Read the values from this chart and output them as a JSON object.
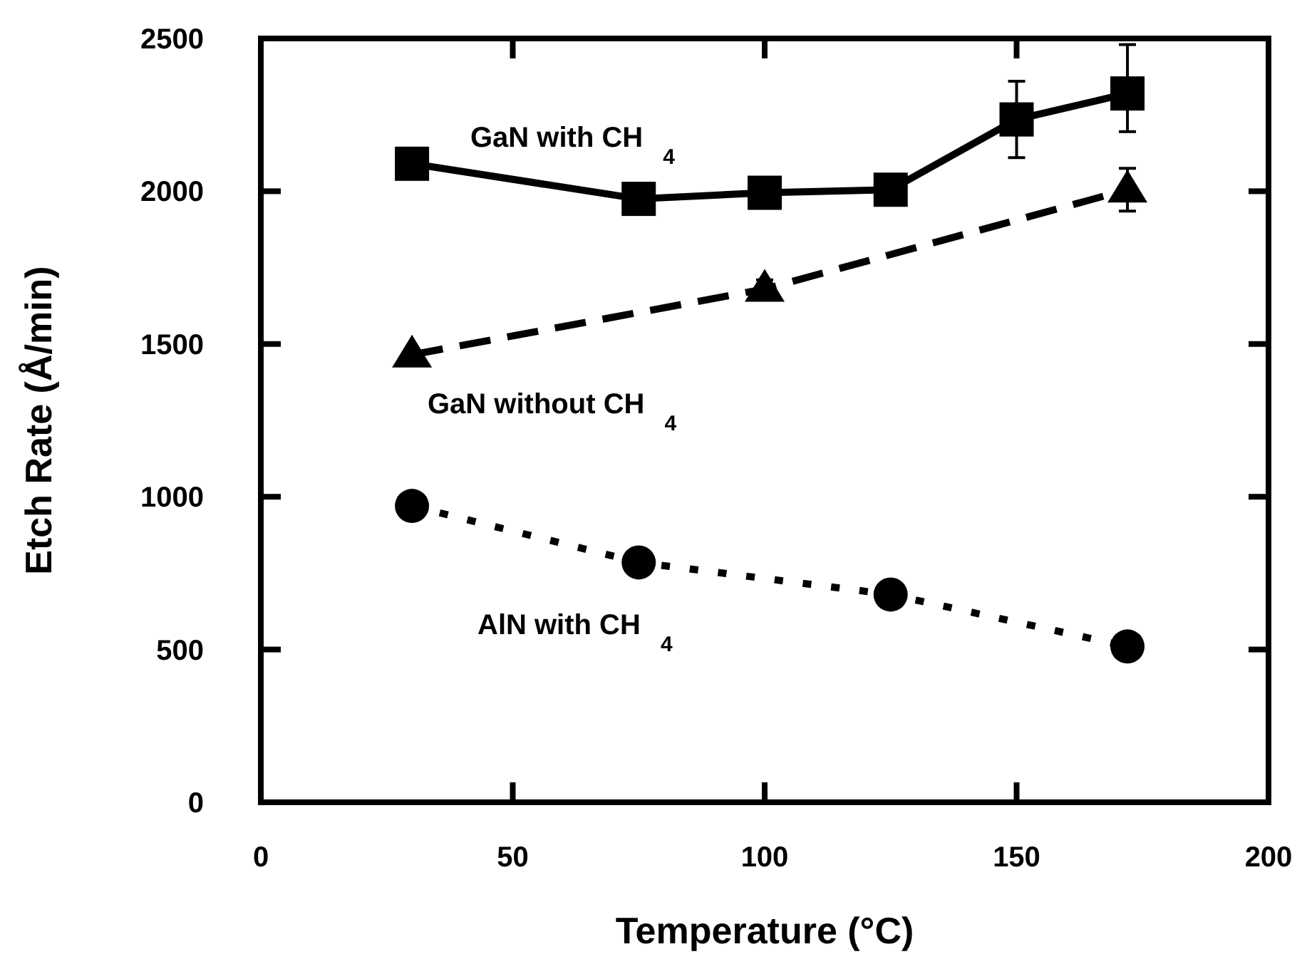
{
  "chart_data": {
    "type": "line",
    "xlabel": "Temperature (°C)",
    "ylabel": "Etch Rate (Å/min)",
    "xlim": [
      0,
      200
    ],
    "ylim": [
      0,
      2500
    ],
    "xticks": [
      0,
      50,
      100,
      150,
      200
    ],
    "yticks": [
      0,
      500,
      1000,
      1500,
      2000,
      2500
    ],
    "grid": false,
    "series": [
      {
        "name": "GaN with CH$_{4}$",
        "color": "#000000",
        "marker": "square",
        "line_style": "solid",
        "x": [
          30,
          75,
          100,
          125,
          150,
          172
        ],
        "values": [
          2090,
          1975,
          1995,
          2005,
          2235,
          2320
        ],
        "errors": [
          null,
          null,
          null,
          null,
          125,
          [
            2195,
            2480
          ]
        ]
      },
      {
        "name": "GaN without CH$_{4}$",
        "color": "#000000",
        "marker": "triangle",
        "line_style": "dashed",
        "x": [
          30,
          100,
          172
        ],
        "values": [
          1465,
          1680,
          2005
        ],
        "errors": [
          null,
          30,
          70
        ]
      },
      {
        "name": "AlN with CH$_{4}$",
        "color": "#000000",
        "marker": "circle",
        "line_style": "dotted",
        "x": [
          30,
          75,
          125,
          172
        ],
        "values": [
          970,
          785,
          680,
          510
        ]
      }
    ]
  }
}
